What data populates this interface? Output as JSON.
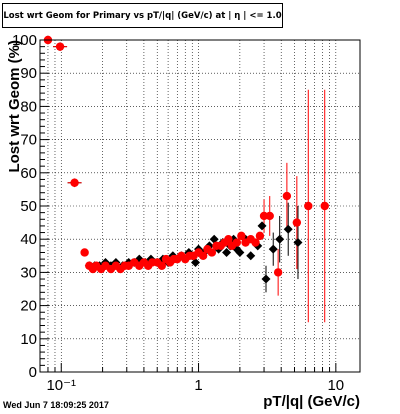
{
  "title": "Lost wrt Geom for Primary vs pT/|q| (GeV/c) at | η | <= 1.0",
  "timestamp": "Wed Jun  7 18:09:25 2017",
  "chart_data": {
    "type": "scatter",
    "title": "Lost wrt Geom for Primary vs pT/|q| (GeV/c) at | η | <= 1.0",
    "xlabel": "pT/|q| (GeV/c)",
    "ylabel": "Lost wrt Geom (%)",
    "xscale": "log",
    "xlim": [
      0.07,
      15
    ],
    "ylim": [
      0,
      100
    ],
    "xticks": [
      {
        "v": 0.1,
        "label": "10⁻¹"
      },
      {
        "v": 1,
        "label": "1"
      },
      {
        "v": 10,
        "label": "10"
      }
    ],
    "yticks": [
      0,
      10,
      20,
      30,
      40,
      50,
      60,
      70,
      80,
      90,
      100
    ],
    "grid": true,
    "colors": {
      "series_black": "#000000",
      "series_red": "#ff0000"
    },
    "series": [
      {
        "color": "#000000",
        "points": [
          {
            "x": 0.08,
            "y": 100
          },
          {
            "x": 0.098,
            "y": 98
          },
          {
            "x": 0.125,
            "y": 57
          },
          {
            "x": 0.16,
            "y": 32
          },
          {
            "x": 0.175,
            "y": 32
          },
          {
            "x": 0.19,
            "y": 32
          },
          {
            "x": 0.21,
            "y": 33
          },
          {
            "x": 0.23,
            "y": 32
          },
          {
            "x": 0.25,
            "y": 33
          },
          {
            "x": 0.28,
            "y": 32
          },
          {
            "x": 0.31,
            "y": 33
          },
          {
            "x": 0.34,
            "y": 33
          },
          {
            "x": 0.37,
            "y": 34
          },
          {
            "x": 0.41,
            "y": 33
          },
          {
            "x": 0.45,
            "y": 34
          },
          {
            "x": 0.5,
            "y": 33
          },
          {
            "x": 0.55,
            "y": 34
          },
          {
            "x": 0.6,
            "y": 33
          },
          {
            "x": 0.65,
            "y": 35
          },
          {
            "x": 0.7,
            "y": 34
          },
          {
            "x": 0.75,
            "y": 35
          },
          {
            "x": 0.8,
            "y": 34
          },
          {
            "x": 0.85,
            "y": 36
          },
          {
            "x": 0.9,
            "y": 35
          },
          {
            "x": 0.95,
            "y": 33
          },
          {
            "x": 1.0,
            "y": 37
          },
          {
            "x": 1.1,
            "y": 36
          },
          {
            "x": 1.2,
            "y": 38
          },
          {
            "x": 1.3,
            "y": 40
          },
          {
            "x": 1.4,
            "y": 37
          },
          {
            "x": 1.5,
            "y": 39
          },
          {
            "x": 1.6,
            "y": 36
          },
          {
            "x": 1.7,
            "y": 38
          },
          {
            "x": 1.8,
            "y": 40
          },
          {
            "x": 1.9,
            "y": 37
          },
          {
            "x": 2.0,
            "y": 36
          },
          {
            "x": 2.2,
            "y": 40
          },
          {
            "x": 2.4,
            "y": 35
          },
          {
            "x": 2.7,
            "y": 38
          },
          {
            "x": 2.9,
            "y": 44
          },
          {
            "x": 3.1,
            "y": 28,
            "err": 4
          },
          {
            "x": 3.5,
            "y": 37,
            "err": 5
          },
          {
            "x": 3.9,
            "y": 40,
            "err": 7
          },
          {
            "x": 4.5,
            "y": 43,
            "err": 8
          },
          {
            "x": 5.3,
            "y": 39,
            "err": 11
          }
        ]
      },
      {
        "color": "#ff0000",
        "points": [
          {
            "x": 0.08,
            "y": 100
          },
          {
            "x": 0.098,
            "y": 98
          },
          {
            "x": 0.125,
            "y": 57
          },
          {
            "x": 0.148,
            "y": 36
          },
          {
            "x": 0.16,
            "y": 32
          },
          {
            "x": 0.17,
            "y": 31
          },
          {
            "x": 0.18,
            "y": 32
          },
          {
            "x": 0.195,
            "y": 31
          },
          {
            "x": 0.21,
            "y": 32
          },
          {
            "x": 0.23,
            "y": 31
          },
          {
            "x": 0.25,
            "y": 32
          },
          {
            "x": 0.27,
            "y": 31
          },
          {
            "x": 0.29,
            "y": 32
          },
          {
            "x": 0.31,
            "y": 32
          },
          {
            "x": 0.34,
            "y": 33
          },
          {
            "x": 0.37,
            "y": 32
          },
          {
            "x": 0.4,
            "y": 33
          },
          {
            "x": 0.43,
            "y": 32
          },
          {
            "x": 0.46,
            "y": 33
          },
          {
            "x": 0.5,
            "y": 33
          },
          {
            "x": 0.54,
            "y": 32
          },
          {
            "x": 0.58,
            "y": 34
          },
          {
            "x": 0.62,
            "y": 33
          },
          {
            "x": 0.66,
            "y": 34
          },
          {
            "x": 0.7,
            "y": 34
          },
          {
            "x": 0.75,
            "y": 35
          },
          {
            "x": 0.8,
            "y": 34
          },
          {
            "x": 0.86,
            "y": 35
          },
          {
            "x": 0.92,
            "y": 35
          },
          {
            "x": 1.0,
            "y": 36
          },
          {
            "x": 1.08,
            "y": 35
          },
          {
            "x": 1.16,
            "y": 37
          },
          {
            "x": 1.25,
            "y": 36
          },
          {
            "x": 1.35,
            "y": 38
          },
          {
            "x": 1.45,
            "y": 38
          },
          {
            "x": 1.55,
            "y": 39
          },
          {
            "x": 1.65,
            "y": 40
          },
          {
            "x": 1.75,
            "y": 38
          },
          {
            "x": 1.9,
            "y": 39
          },
          {
            "x": 2.05,
            "y": 41
          },
          {
            "x": 2.2,
            "y": 39
          },
          {
            "x": 2.4,
            "y": 40
          },
          {
            "x": 2.6,
            "y": 39
          },
          {
            "x": 2.8,
            "y": 41
          },
          {
            "x": 3.0,
            "y": 47,
            "err": 5
          },
          {
            "x": 3.3,
            "y": 47,
            "err": 6
          },
          {
            "x": 3.8,
            "y": 30,
            "err": 7
          },
          {
            "x": 4.4,
            "y": 53,
            "err": 10
          },
          {
            "x": 5.2,
            "y": 45,
            "err": 14
          },
          {
            "x": 6.3,
            "y": 50,
            "err": 35
          },
          {
            "x": 8.3,
            "y": 50,
            "err": 35
          }
        ]
      }
    ]
  }
}
